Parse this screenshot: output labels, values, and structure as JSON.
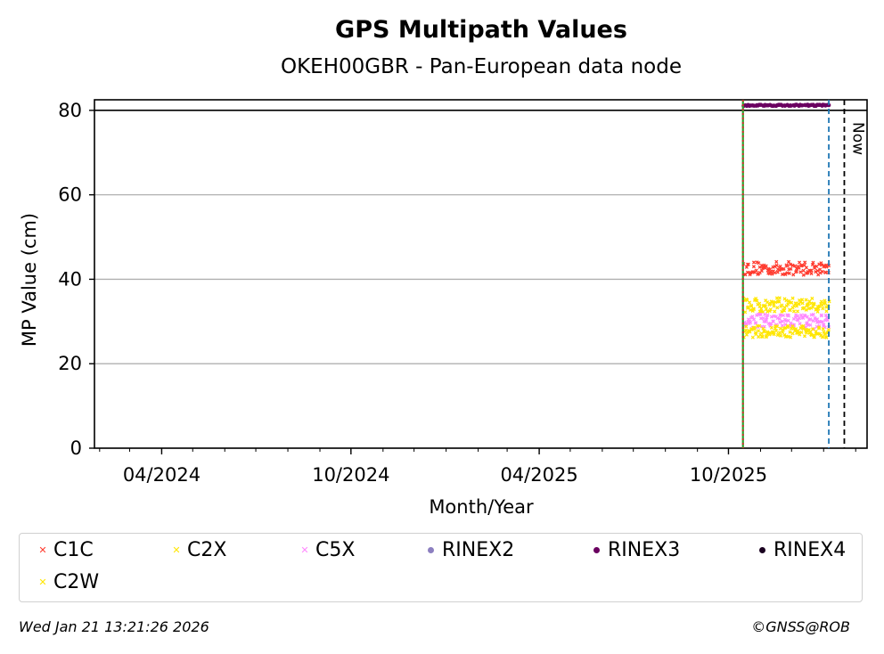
{
  "chart_data": {
    "type": "scatter",
    "title": "GPS Multipath Values",
    "subtitle": "OKEH00GBR - Pan-European data node",
    "xlabel": "Month/Year",
    "ylabel": "MP Value (cm)",
    "ylim": [
      0,
      82.5
    ],
    "xlim": [
      "2024-01-27",
      "2026-02-12"
    ],
    "x_ticks": [
      {
        "date": "2024-04-01",
        "label": "04/2024"
      },
      {
        "date": "2024-10-01",
        "label": "10/2024"
      },
      {
        "date": "2025-04-01",
        "label": "04/2025"
      },
      {
        "date": "2025-10-01",
        "label": "10/2025"
      }
    ],
    "y_ticks": [
      0,
      20,
      40,
      60,
      80
    ],
    "grid": "horizontal",
    "horizontal_line": 80,
    "vertical_markers": [
      {
        "date": "2025-10-15",
        "style": "solid",
        "color": "#2ca02c",
        "label": ""
      },
      {
        "date": "2025-10-15",
        "style": "dotted",
        "color": "#d62728",
        "label": ""
      },
      {
        "date": "2026-01-06",
        "style": "dashed",
        "color": "#1f77b4",
        "label": ""
      },
      {
        "date": "2026-01-21",
        "style": "dashed",
        "color": "#000000",
        "label": "Now"
      }
    ],
    "series": [
      {
        "name": "C1C",
        "color": "#ff3b2f",
        "marker": "x",
        "date_range": [
          "2025-10-16",
          "2026-01-06"
        ],
        "mean": 42.6,
        "spread": 1.6
      },
      {
        "name": "C2X",
        "color": "#ffe600",
        "marker": "x",
        "date_range": [
          "2025-10-16",
          "2026-01-06"
        ],
        "mean": 33.9,
        "spread": 1.7
      },
      {
        "name": "C5X",
        "color": "#ff88ff",
        "marker": "x",
        "date_range": [
          "2025-10-16",
          "2026-01-06"
        ],
        "mean": 30.0,
        "spread": 1.8
      },
      {
        "name": "RINEX2",
        "color": "#8c7fc0",
        "marker": "o",
        "date_range": [],
        "mean": null,
        "spread": 0
      },
      {
        "name": "RINEX3",
        "color": "#6a0060",
        "marker": "o",
        "date_range": [
          "2025-10-16",
          "2026-01-06"
        ],
        "mean": 81.2,
        "spread": 0.15
      },
      {
        "name": "RINEX4",
        "color": "#1a0020",
        "marker": "o",
        "date_range": [],
        "mean": null,
        "spread": 0
      },
      {
        "name": "C2W",
        "color": "#ffe600",
        "marker": "x",
        "date_range": [
          "2025-10-16",
          "2026-01-06"
        ],
        "mean": 27.6,
        "spread": 1.4
      }
    ]
  },
  "legend": [
    {
      "label": "C1C",
      "color": "#ff3b2f",
      "marker": "x"
    },
    {
      "label": "C2X",
      "color": "#ffe600",
      "marker": "x"
    },
    {
      "label": "C5X",
      "color": "#ff88ff",
      "marker": "x"
    },
    {
      "label": "RINEX2",
      "color": "#8c7fc0",
      "marker": "o"
    },
    {
      "label": "RINEX3",
      "color": "#6a0060",
      "marker": "o"
    },
    {
      "label": "RINEX4",
      "color": "#1a0020",
      "marker": "o"
    },
    {
      "label": "C2W",
      "color": "#ffe600",
      "marker": "x"
    }
  ],
  "footer": {
    "timestamp": "Wed Jan 21 13:21:26 2026",
    "copyright": "©GNSS@ROB"
  }
}
